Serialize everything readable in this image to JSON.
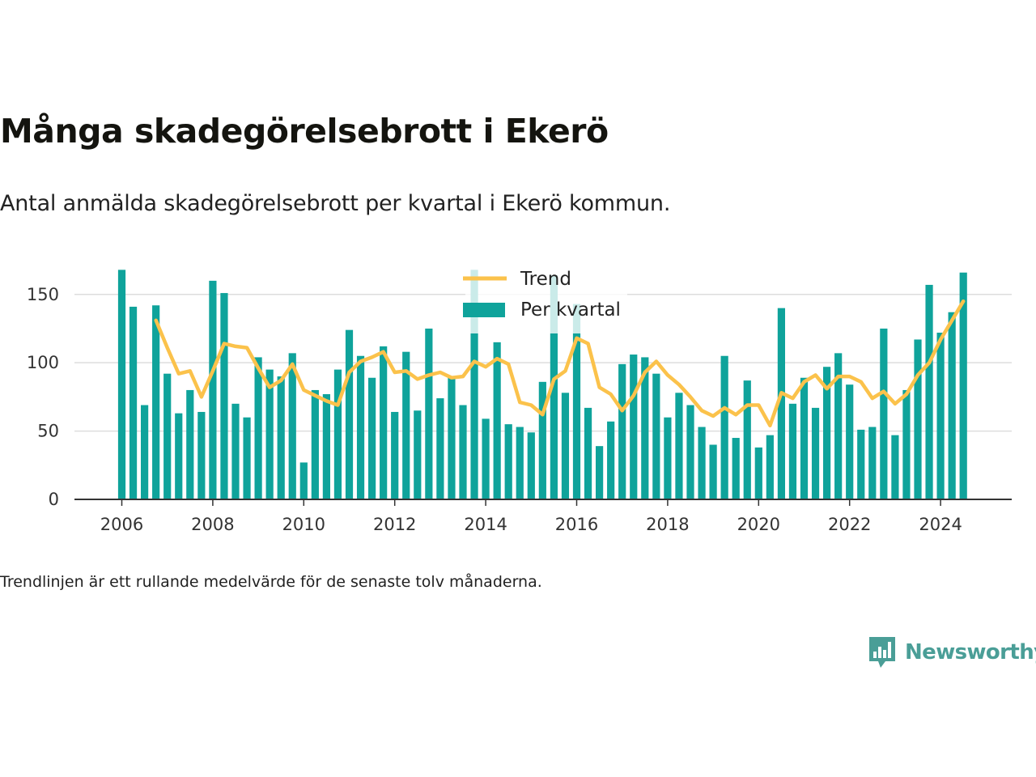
{
  "title": "Många skadegörelsebrott i Ekerö",
  "subtitle": "Antal anmälda skadegörelsebrott per kvartal i Ekerö kommun.",
  "note": "Trendlinjen är ett rullande medelvärde för de senaste tolv månaderna.",
  "brand": {
    "name": "Newsworthy",
    "logo_icon": "newsworthy-bar-chart-speech-bubble-icon",
    "color": "#4a9e97"
  },
  "colors": {
    "bar": "#0fa39b",
    "trend": "#fbc24b",
    "axis": "#333333",
    "grid": "#dddddd"
  },
  "chart_data": {
    "type": "bar",
    "title": "Många skadegörelsebrott i Ekerö",
    "subtitle": "Antal anmälda skadegörelsebrott per kvartal i Ekerö kommun.",
    "xlabel": "",
    "ylabel": "",
    "ylim": [
      0,
      170
    ],
    "yticks": [
      0,
      50,
      100,
      150
    ],
    "xticks": [
      "2006",
      "2008",
      "2010",
      "2012",
      "2014",
      "2016",
      "2018",
      "2020",
      "2022",
      "2024"
    ],
    "grid": true,
    "legend_position": "top-center",
    "categories": [
      "2006 Q1",
      "2006 Q2",
      "2006 Q3",
      "2006 Q4",
      "2007 Q1",
      "2007 Q2",
      "2007 Q3",
      "2007 Q4",
      "2008 Q1",
      "2008 Q2",
      "2008 Q3",
      "2008 Q4",
      "2009 Q1",
      "2009 Q2",
      "2009 Q3",
      "2009 Q4",
      "2010 Q1",
      "2010 Q2",
      "2010 Q3",
      "2010 Q4",
      "2011 Q1",
      "2011 Q2",
      "2011 Q3",
      "2011 Q4",
      "2012 Q1",
      "2012 Q2",
      "2012 Q3",
      "2012 Q4",
      "2013 Q1",
      "2013 Q2",
      "2013 Q3",
      "2013 Q4",
      "2014 Q1",
      "2014 Q2",
      "2014 Q3",
      "2014 Q4",
      "2015 Q1",
      "2015 Q2",
      "2015 Q3",
      "2015 Q4",
      "2016 Q1",
      "2016 Q2",
      "2016 Q3",
      "2016 Q4",
      "2017 Q1",
      "2017 Q2",
      "2017 Q3",
      "2017 Q4",
      "2018 Q1",
      "2018 Q2",
      "2018 Q3",
      "2018 Q4",
      "2019 Q1",
      "2019 Q2",
      "2019 Q3",
      "2019 Q4",
      "2020 Q1",
      "2020 Q2",
      "2020 Q3",
      "2020 Q4",
      "2021 Q1",
      "2021 Q2",
      "2021 Q3",
      "2021 Q4",
      "2022 Q1",
      "2022 Q2",
      "2022 Q3",
      "2022 Q4",
      "2023 Q1",
      "2023 Q2",
      "2023 Q3",
      "2023 Q4",
      "2024 Q1",
      "2024 Q2",
      "2024 Q3"
    ],
    "series": [
      {
        "name": "Per kvartal",
        "type": "bar",
        "values": [
          168,
          141,
          69,
          142,
          92,
          63,
          80,
          64,
          160,
          151,
          70,
          60,
          104,
          95,
          90,
          107,
          27,
          80,
          77,
          95,
          124,
          105,
          89,
          112,
          64,
          108,
          65,
          125,
          74,
          90,
          69,
          168,
          59,
          115,
          55,
          53,
          49,
          86,
          164,
          78,
          143,
          67,
          39,
          57,
          99,
          106,
          104,
          92,
          60,
          78,
          69,
          53,
          40,
          105,
          45,
          87,
          38,
          47,
          140,
          70,
          89,
          67,
          97,
          107,
          84,
          51,
          53,
          125,
          47,
          80,
          117,
          157,
          122,
          137,
          166
        ]
      },
      {
        "name": "Trend",
        "type": "line",
        "values": [
          null,
          null,
          null,
          131,
          111,
          92,
          94,
          75,
          94,
          114,
          112,
          111,
          96,
          82,
          87,
          99,
          80,
          76,
          72,
          69,
          93,
          101,
          104,
          108,
          93,
          94,
          88,
          91,
          93,
          89,
          90,
          101,
          97,
          103,
          99,
          71,
          69,
          62,
          88,
          94,
          118,
          114,
          82,
          77,
          65,
          76,
          93,
          101,
          91,
          84,
          75,
          65,
          61,
          67,
          62,
          69,
          69,
          54,
          78,
          74,
          86,
          91,
          81,
          90,
          90,
          86,
          74,
          79,
          70,
          77,
          91,
          100,
          117,
          131,
          145
        ]
      }
    ]
  }
}
